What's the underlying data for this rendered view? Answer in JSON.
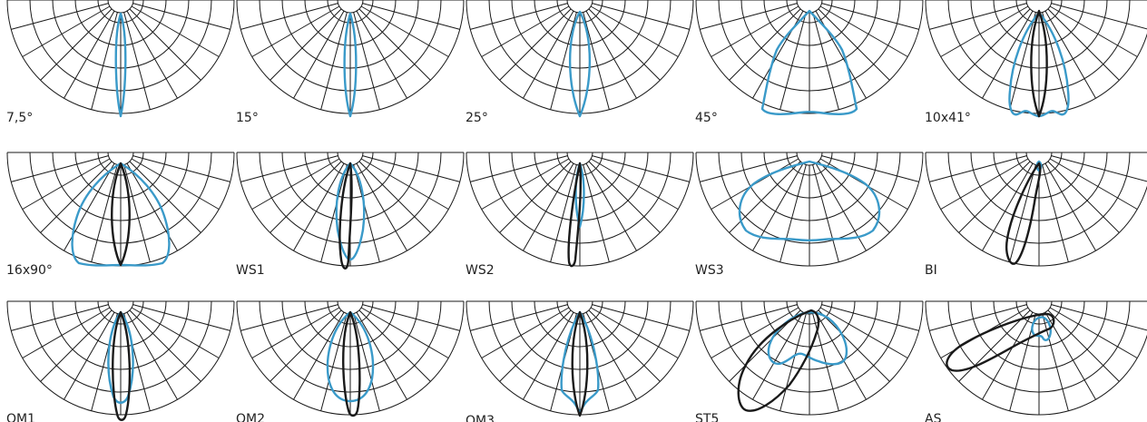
{
  "colors": {
    "grid": "#1a1a1a",
    "beam_primary": "#3a9ac9",
    "beam_secondary": "#1a1a1a"
  },
  "panels": [
    {
      "label": "7,5°"
    },
    {
      "label": "15°"
    },
    {
      "label": "25°"
    },
    {
      "label": "45°"
    },
    {
      "label": "10x41°"
    },
    {
      "label": "16x90°"
    },
    {
      "label": "WS1"
    },
    {
      "label": "WS2"
    },
    {
      "label": "WS3"
    },
    {
      "label": "BI"
    },
    {
      "label": "OM1"
    },
    {
      "label": "OM2"
    },
    {
      "label": "OM3"
    },
    {
      "label": "ST5"
    },
    {
      "label": "AS"
    }
  ]
}
